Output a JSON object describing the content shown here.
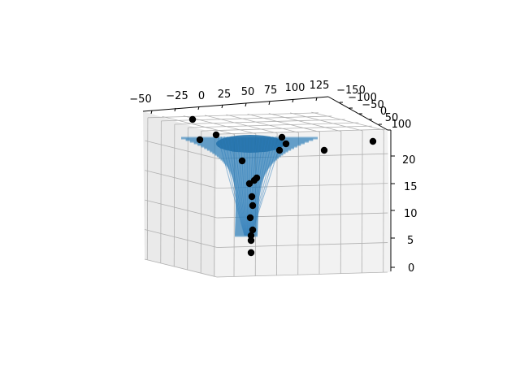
{
  "chart_data": {
    "type": "scatter",
    "projection": "3d",
    "title": "",
    "xlabel": "",
    "ylabel": "",
    "zlabel": "",
    "xlim": [
      -70,
      130
    ],
    "ylim": [
      -160,
      110
    ],
    "zlim": [
      0,
      24
    ],
    "x_ticks": [
      "−50",
      "−25",
      "0",
      "25",
      "50",
      "75",
      "100",
      "125"
    ],
    "y_ticks": [
      "−150",
      "−100",
      "−50",
      "0",
      "50",
      "100"
    ],
    "z_ticks": [
      "0",
      "5",
      "10",
      "15",
      "20"
    ],
    "grid": true,
    "legend": "none",
    "series": [
      {
        "kind": "surface",
        "shape": "funnel: broad flat top near z≈22, narrowing sharply to a thin spout reaching z≈3",
        "color": "#1f77b4"
      },
      {
        "kind": "scatter",
        "color": "#000000",
        "points": [
          {
            "x": -40,
            "y": -60,
            "z": 22.5
          },
          {
            "x": -50,
            "y": 40,
            "z": 22.0
          },
          {
            "x": -10,
            "y": 20,
            "z": 22.0
          },
          {
            "x": 80,
            "y": 60,
            "z": 21.3
          },
          {
            "x": 92,
            "y": 30,
            "z": 22.0
          },
          {
            "x": 72,
            "y": 80,
            "z": 22.5
          },
          {
            "x": 128,
            "y": 20,
            "z": 22.0
          },
          {
            "x": 110,
            "y": 100,
            "z": 21.6
          },
          {
            "x": 25,
            "y": 20,
            "z": 17.0
          },
          {
            "x": 32,
            "y": 20,
            "z": 16.3
          },
          {
            "x": 31,
            "y": 20,
            "z": 15.8
          },
          {
            "x": 30,
            "y": 20,
            "z": 15.2
          },
          {
            "x": 30,
            "y": 20,
            "z": 13.1
          },
          {
            "x": 33,
            "y": 20,
            "z": 11.8
          },
          {
            "x": 30,
            "y": 20,
            "z": 9.8
          },
          {
            "x": 31,
            "y": 20,
            "z": 7.1
          },
          {
            "x": 30,
            "y": 20,
            "z": 6.6
          },
          {
            "x": 30,
            "y": 20,
            "z": 6.0
          },
          {
            "x": 31,
            "y": 20,
            "z": 3.1
          }
        ]
      }
    ]
  }
}
